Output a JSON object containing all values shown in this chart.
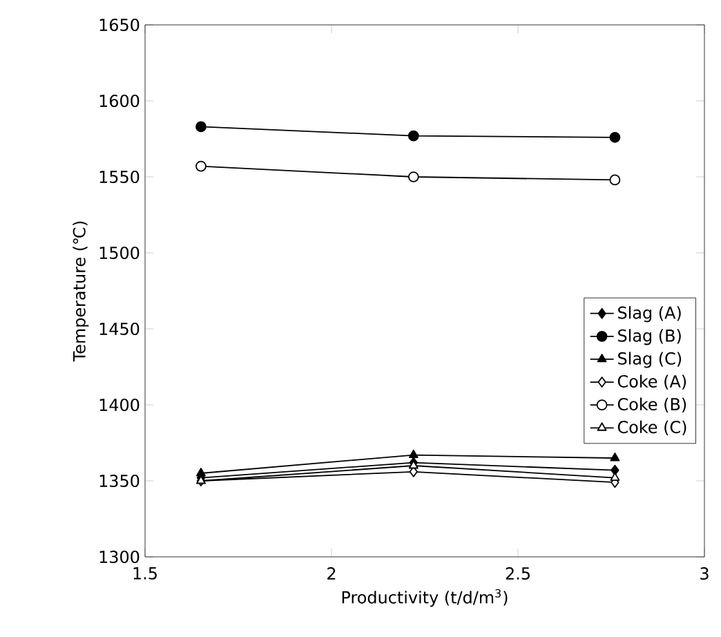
{
  "chart_data": {
    "type": "line",
    "xlabel": "Productivity (t/d/m$^{3}$)",
    "ylabel": "Temperature (℃)",
    "x": [
      1.65,
      2.22,
      2.76
    ],
    "xlim": [
      1.5,
      3
    ],
    "xticks": [
      1.5,
      2,
      2.5,
      3
    ],
    "ylim": [
      1300,
      1650
    ],
    "yticks": [
      1300,
      1350,
      1400,
      1450,
      1500,
      1550,
      1600,
      1650
    ],
    "grid": false,
    "legend": "right",
    "line_style": "solid",
    "series": [
      {
        "name": "Slag (A)",
        "color": "#000000",
        "marker": "diamond",
        "values": [
          1352,
          1362,
          1357
        ]
      },
      {
        "name": "Slag (B)",
        "color": "#000000",
        "marker": "circle",
        "values": [
          1583,
          1577,
          1576
        ]
      },
      {
        "name": "Slag (C)",
        "color": "#000000",
        "marker": "triangle",
        "values": [
          1355,
          1367,
          1365
        ]
      },
      {
        "name": "Coke (A)",
        "color": "#ffffff",
        "marker": "diamond",
        "values": [
          1350,
          1356,
          1349
        ]
      },
      {
        "name": "Coke (B)",
        "color": "#ffffff",
        "marker": "circle",
        "values": [
          1557,
          1550,
          1548
        ]
      },
      {
        "name": "Coke (C)",
        "color": "#ffffff",
        "marker": "triangle",
        "values": [
          1350,
          1360,
          1352
        ]
      }
    ]
  }
}
